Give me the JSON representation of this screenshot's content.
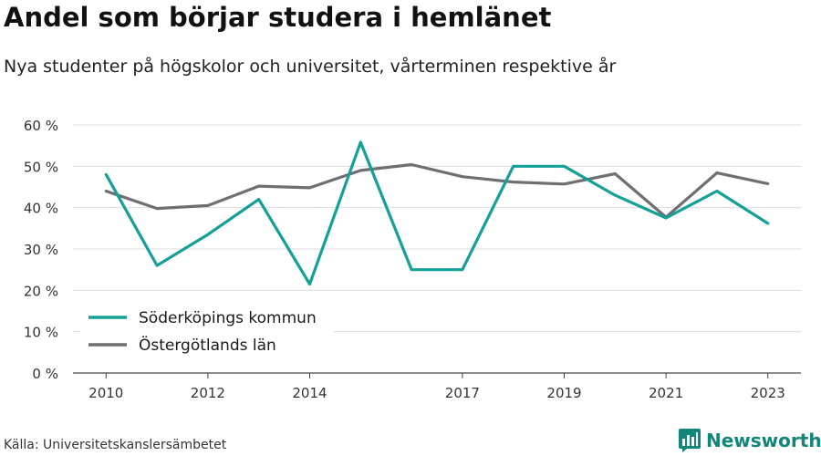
{
  "title": "Andel som börjar studera i hemlänet",
  "subtitle": "Nya studenter på högskolor och universitet, vårterminen respektive år",
  "source": "Källa: Universitetskanslersämbetet",
  "brand": {
    "name": "Newsworthy",
    "logo_icon": "bar-chart-logo-icon",
    "color": "#13857a"
  },
  "chart_data": {
    "type": "line",
    "title": "Andel som börjar studera i hemlänet",
    "xlabel": "",
    "ylabel": "",
    "x": [
      2010,
      2011,
      2012,
      2013,
      2014,
      2015,
      2016,
      2017,
      2018,
      2019,
      2020,
      2021,
      2022,
      2023
    ],
    "x_tick_values": [
      2010,
      2012,
      2014,
      2017,
      2019,
      2021,
      2023
    ],
    "x_tick_labels": [
      "2010",
      "2012",
      "2014",
      "2017",
      "2019",
      "2021",
      "2023"
    ],
    "xlim": [
      2009.35,
      2023.65
    ],
    "y_ticks": [
      0,
      10,
      20,
      30,
      40,
      50,
      60
    ],
    "y_tick_labels": [
      "0 %",
      "10 %",
      "20 %",
      "30 %",
      "40 %",
      "50 %",
      "60 %"
    ],
    "ylim": [
      0,
      60
    ],
    "grid": true,
    "legend_position": "bottom-left",
    "series": [
      {
        "name": "Söderköpings kommun",
        "color": "#14a097",
        "values": [
          48,
          26,
          33.5,
          42,
          21.5,
          55.8,
          25,
          25,
          50,
          50,
          43,
          37.5,
          44,
          36.2
        ]
      },
      {
        "name": "Östergötlands län",
        "color": "#6e6e73",
        "values": [
          44,
          39.8,
          40.5,
          45.2,
          44.8,
          49,
          50.4,
          47.5,
          46.2,
          45.7,
          48.2,
          37.7,
          48.4,
          45.8
        ]
      }
    ]
  }
}
